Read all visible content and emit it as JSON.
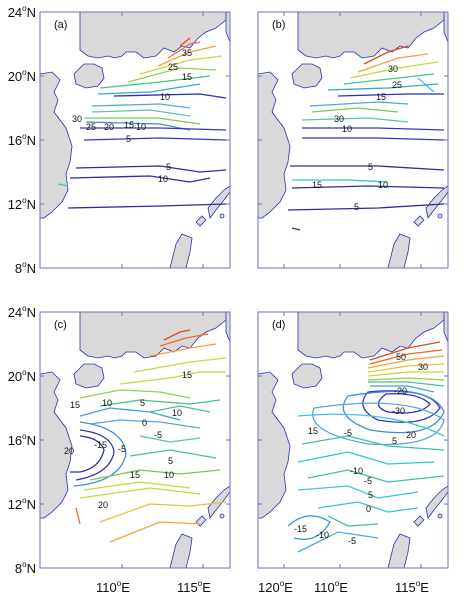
{
  "figure": {
    "lat_labels": [
      {
        "deg": "24",
        "hemi": "N"
      },
      {
        "deg": "20",
        "hemi": "N"
      },
      {
        "deg": "16",
        "hemi": "N"
      },
      {
        "deg": "12",
        "hemi": "N"
      },
      {
        "deg": "8",
        "hemi": "N"
      }
    ],
    "lon_labels": [
      {
        "deg": "110",
        "hemi": "E"
      },
      {
        "deg": "115",
        "hemi": "E"
      },
      {
        "deg": "120",
        "hemi": "E"
      }
    ],
    "degree_symbol": "o",
    "colors": {
      "land": "#d9d9d9",
      "coast": "#2a2fb5",
      "frame": "#6f6fc8"
    }
  },
  "panels": [
    {
      "id": "a",
      "label": "(a)",
      "contour_labels": [
        "35",
        "25",
        "15",
        "10",
        "30",
        "25",
        "20",
        "15",
        "10",
        "5",
        "5",
        "10"
      ]
    },
    {
      "id": "b",
      "label": "(b)",
      "contour_labels": [
        "30",
        "25",
        "15",
        "30",
        "10",
        "5",
        "15",
        "10",
        "5"
      ]
    },
    {
      "id": "c",
      "label": "(c)",
      "contour_labels": [
        "15",
        "15",
        "10",
        "5",
        "10",
        "0",
        "-5",
        "20",
        "-15",
        "-5",
        "5",
        "15",
        "10",
        "20"
      ]
    },
    {
      "id": "d",
      "label": "(d)",
      "contour_labels": [
        "50",
        "30",
        "-20",
        "-30",
        "15",
        "-5",
        "20",
        "5",
        "-10",
        "-5",
        "-15",
        "5",
        "0",
        "-10",
        "-5"
      ]
    }
  ]
}
